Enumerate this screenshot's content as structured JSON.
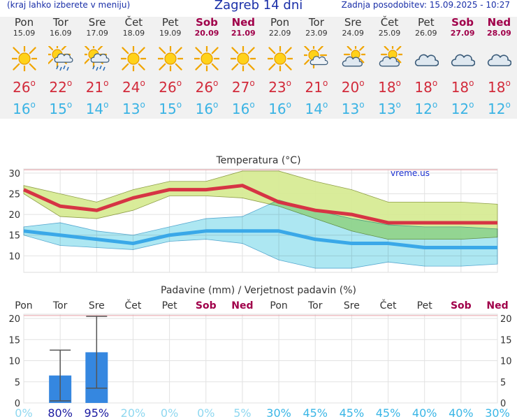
{
  "header": {
    "hint": "(kraj lahko izberete v meniju)",
    "title": "Zagreb 14 dni",
    "updated": "Zadnja posodobitev: 15.09.2025 - 10:27"
  },
  "days": [
    {
      "name": "Pon",
      "date": "15.09",
      "hi": "26",
      "lo": "16",
      "icon": "sun-icon",
      "weekend": false
    },
    {
      "name": "Tor",
      "date": "16.09",
      "hi": "22",
      "lo": "15",
      "icon": "sun-cloud-rain-icon",
      "weekend": false
    },
    {
      "name": "Sre",
      "date": "17.09",
      "hi": "21",
      "lo": "14",
      "icon": "sun-cloud-rain-icon",
      "weekend": false
    },
    {
      "name": "Čet",
      "date": "18.09",
      "hi": "24",
      "lo": "13",
      "icon": "sun-icon",
      "weekend": false
    },
    {
      "name": "Pet",
      "date": "19.09",
      "hi": "26",
      "lo": "15",
      "icon": "sun-icon",
      "weekend": false
    },
    {
      "name": "Sob",
      "date": "20.09",
      "hi": "26",
      "lo": "16",
      "icon": "sun-icon",
      "weekend": true
    },
    {
      "name": "Ned",
      "date": "21.09",
      "hi": "27",
      "lo": "16",
      "icon": "sun-icon",
      "weekend": true
    },
    {
      "name": "Pon",
      "date": "22.09",
      "hi": "23",
      "lo": "16",
      "icon": "sun-icon",
      "weekend": false
    },
    {
      "name": "Tor",
      "date": "23.09",
      "hi": "21",
      "lo": "14",
      "icon": "sun-cloud-icon",
      "weekend": false
    },
    {
      "name": "Sre",
      "date": "24.09",
      "hi": "20",
      "lo": "13",
      "icon": "cloud-sun-icon",
      "weekend": false
    },
    {
      "name": "Čet",
      "date": "25.09",
      "hi": "18",
      "lo": "13",
      "icon": "cloud-sun-icon",
      "weekend": false
    },
    {
      "name": "Pet",
      "date": "26.09",
      "hi": "18",
      "lo": "12",
      "icon": "cloud-icon",
      "weekend": false
    },
    {
      "name": "Sob",
      "date": "27.09",
      "hi": "18",
      "lo": "12",
      "icon": "cloud-icon",
      "weekend": true
    },
    {
      "name": "Ned",
      "date": "28.09",
      "hi": "18",
      "lo": "12",
      "icon": "cloud-icon",
      "weekend": true
    }
  ],
  "degree_symbol": "o",
  "colors": {
    "title": "#1a2fa8",
    "max_line": "#d63444",
    "max_band": "#d8eb95",
    "min_line": "#3aa8e8",
    "min_band": "#9fe3f0",
    "overlap_band": "#86d38e",
    "precip_bar": "#3587e0",
    "weekend_text": "#a0004a",
    "probability_text": "#1a1aa0",
    "probability_text_faded": "#8fd8f0"
  },
  "chart_data": [
    {
      "type": "line",
      "title": "Temperatura (°C)",
      "watermark": "vreme.us",
      "unit": "°C",
      "x": [
        "15.09",
        "16.09",
        "17.09",
        "18.09",
        "19.09",
        "20.09",
        "21.09",
        "22.09",
        "23.09",
        "24.09",
        "25.09",
        "26.09",
        "27.09",
        "28.09"
      ],
      "ylim": [
        6,
        31
      ],
      "yticks": [
        10,
        15,
        20,
        25,
        30
      ],
      "grid": true,
      "series": [
        {
          "values": [
            26,
            22,
            21,
            24,
            26,
            26,
            27,
            23,
            21,
            20,
            18,
            18,
            18,
            18
          ]
        },
        {
          "values": [
            16,
            15,
            14,
            13,
            15,
            16,
            16,
            16,
            14,
            13,
            13,
            12,
            12,
            12
          ]
        }
      ],
      "bands": [
        {
          "upper": [
            27,
            25,
            23,
            26,
            28,
            28,
            30.5,
            30.5,
            28,
            26,
            23,
            23,
            23,
            22.5
          ],
          "lower": [
            25,
            19.5,
            19,
            21,
            24.5,
            24.5,
            24,
            22,
            19,
            16,
            14,
            14,
            14,
            14.5
          ]
        },
        {
          "upper": [
            17,
            18,
            16,
            15,
            17,
            19,
            19.5,
            23.5,
            21,
            19,
            17.5,
            17,
            17,
            16.5
          ],
          "lower": [
            15,
            12.5,
            12,
            11.5,
            13.5,
            14,
            13,
            9,
            7,
            7,
            8.5,
            7.5,
            7.5,
            8
          ]
        }
      ]
    },
    {
      "type": "bar",
      "title": "Padavine (mm) / Verjetnost padavin (%)",
      "categories": [
        "Pon",
        "Tor",
        "Sre",
        "Čet",
        "Pet",
        "Sob",
        "Ned",
        "Pon",
        "Tor",
        "Sre",
        "Čet",
        "Pet",
        "Sob",
        "Ned"
      ],
      "weekend": [
        false,
        false,
        false,
        false,
        false,
        true,
        true,
        false,
        false,
        false,
        false,
        false,
        true,
        true
      ],
      "ylim": [
        0,
        21
      ],
      "yticks": [
        0,
        5,
        10,
        15,
        20
      ],
      "values": [
        0,
        6.5,
        12,
        0,
        0,
        0,
        0,
        0,
        0,
        0,
        0,
        0,
        0,
        0
      ],
      "error_low": [
        null,
        0.5,
        3.5,
        null,
        null,
        null,
        null,
        null,
        null,
        null,
        null,
        null,
        null,
        null
      ],
      "error_high": [
        null,
        12.5,
        20.5,
        null,
        null,
        null,
        null,
        null,
        null,
        null,
        null,
        null,
        null,
        null
      ],
      "probability": [
        "0%",
        "80%",
        "95%",
        "20%",
        "0%",
        "0%",
        "5%",
        "30%",
        "45%",
        "45%",
        "45%",
        "40%",
        "40%",
        "30%"
      ],
      "probability_strong": [
        false,
        true,
        true,
        false,
        false,
        false,
        false,
        false,
        false,
        false,
        false,
        false,
        false,
        false
      ]
    }
  ]
}
